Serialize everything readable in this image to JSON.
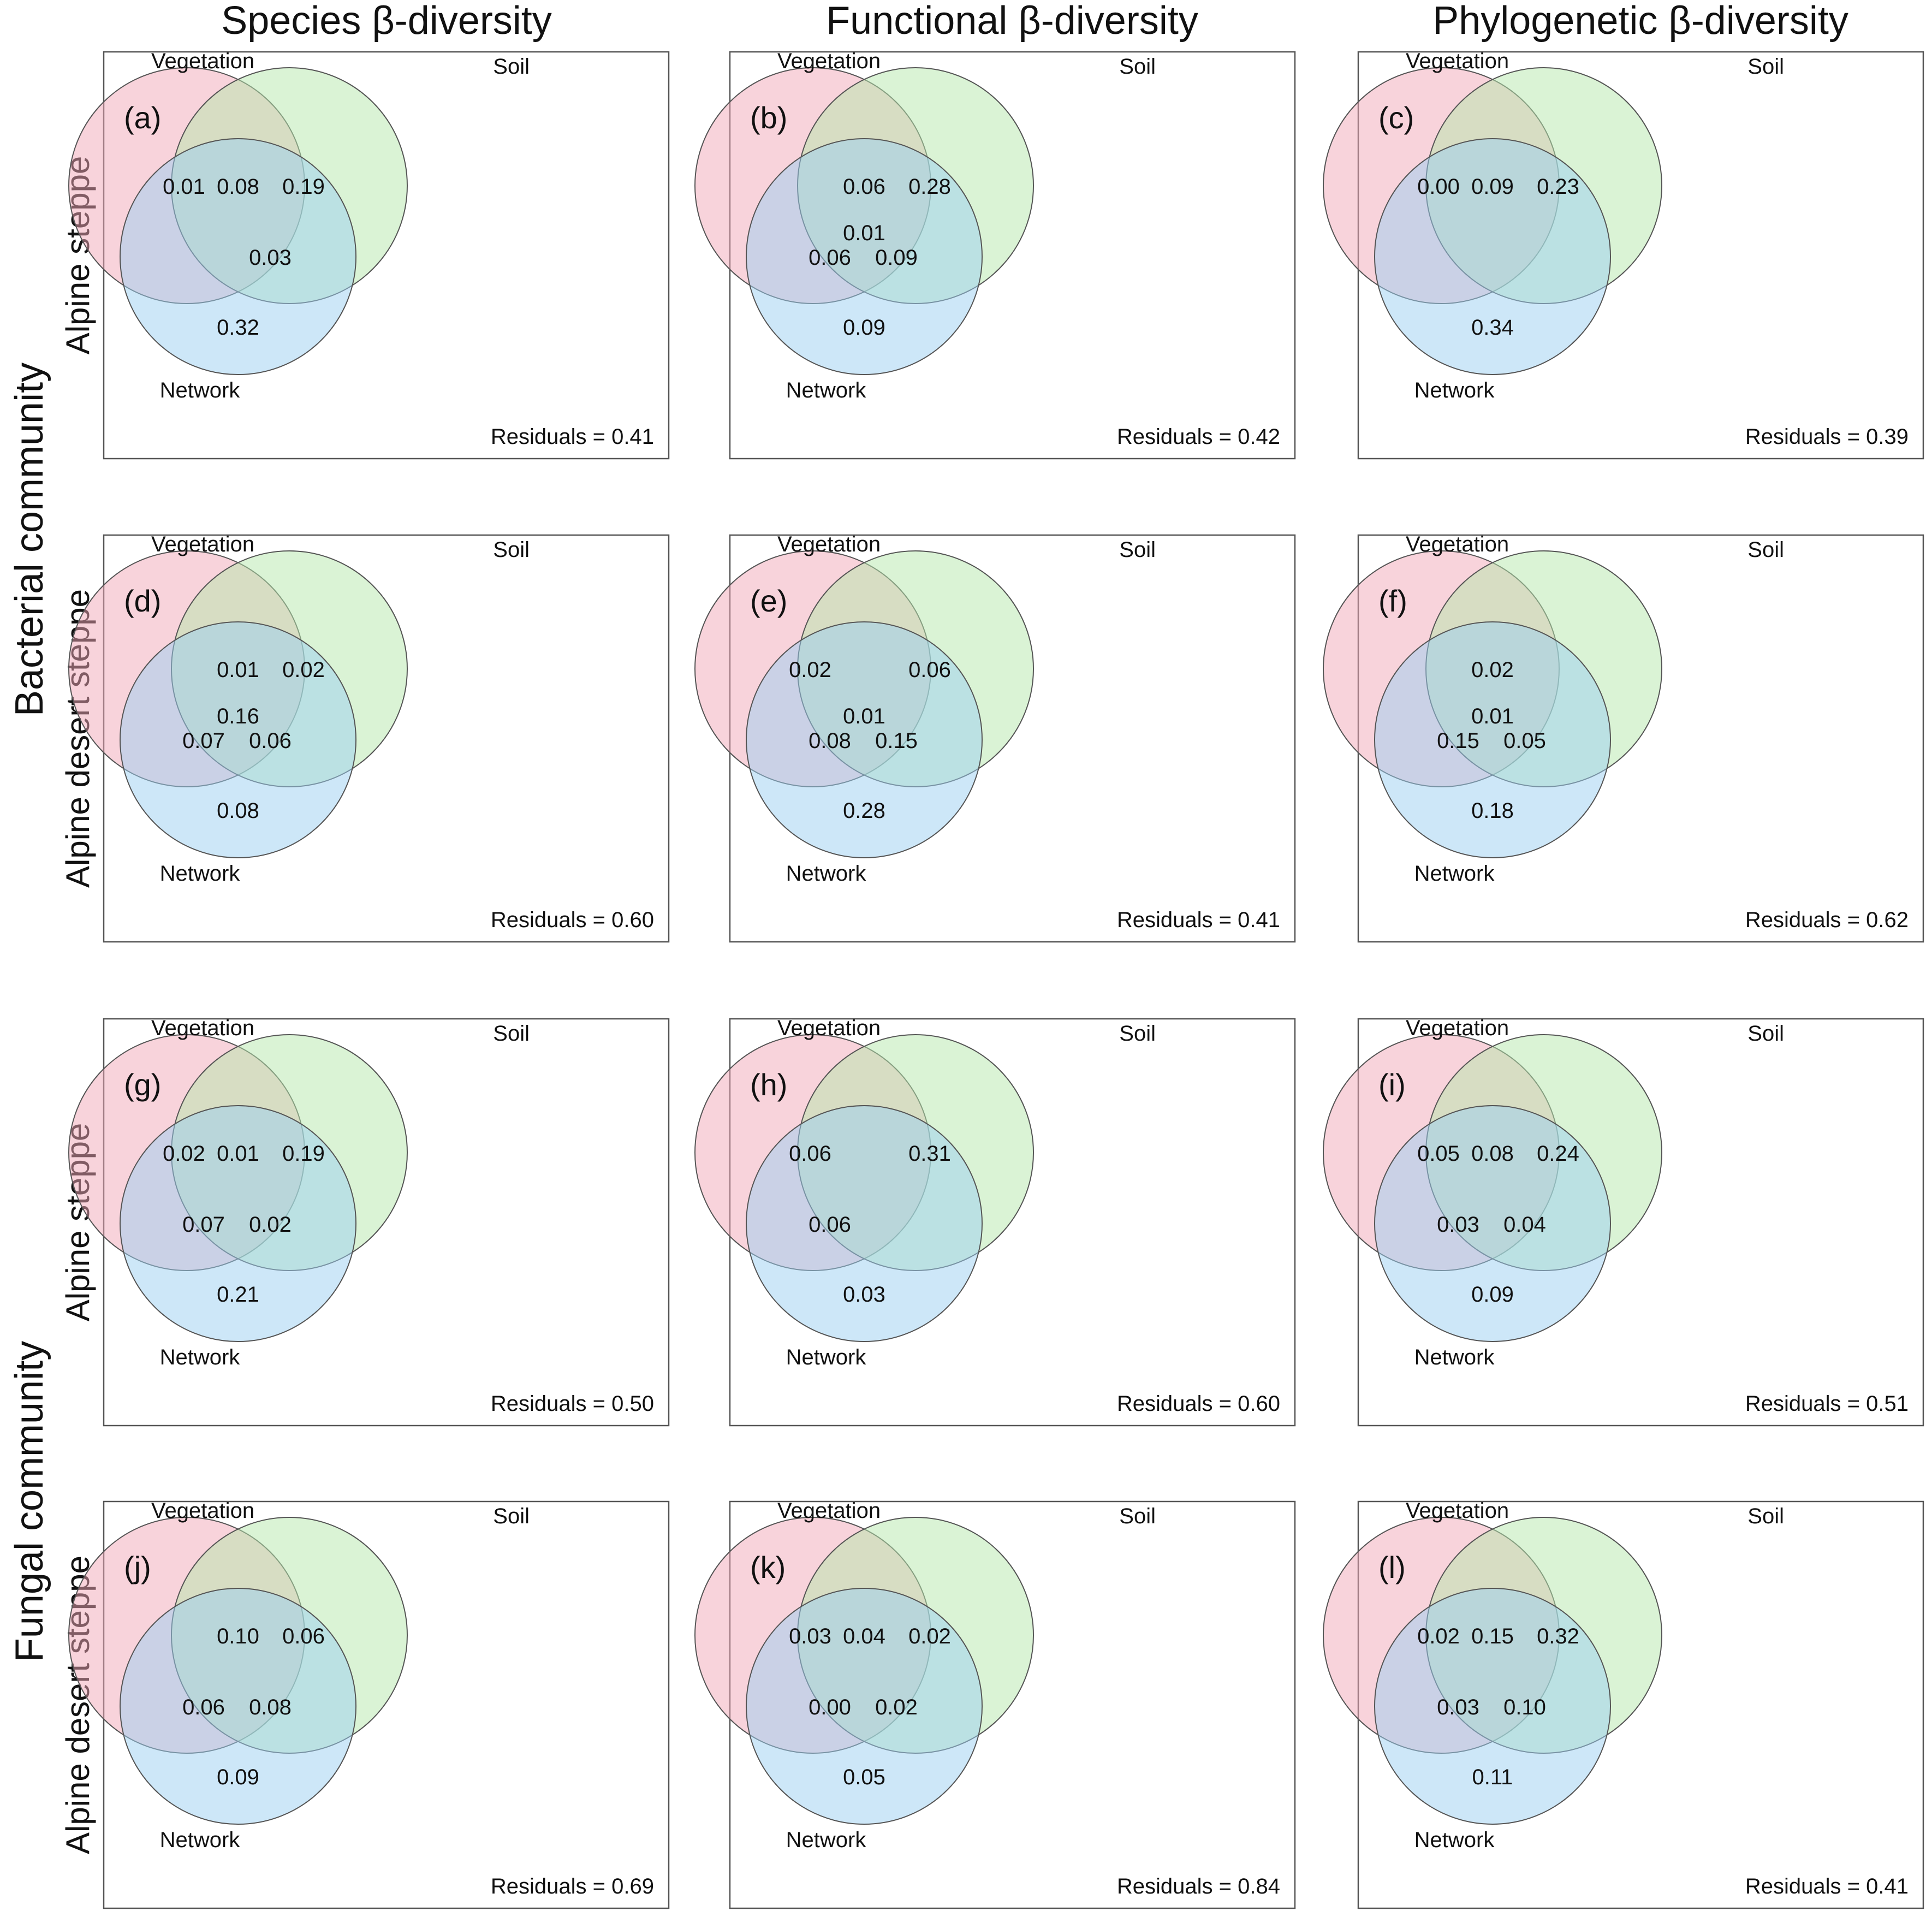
{
  "columns": [
    "Species β-diversity",
    "Functional β-diversity",
    "Phylogenetic β-diversity"
  ],
  "groups": [
    {
      "label": "Bacterial community",
      "rows": [
        "Alpine steppe",
        "Alpine desert steppe"
      ]
    },
    {
      "label": "Fungal community",
      "rows": [
        "Alpine steppe",
        "Alpine desert steppe"
      ]
    }
  ],
  "legend_sets": [
    "Vegetation",
    "Soil",
    "Network"
  ],
  "colors": {
    "vegetation": "#f2a7b8",
    "soil": "#b5e8ab",
    "network": "#9ccff2"
  },
  "residuals_prefix": "Residuals = ",
  "panels": [
    {
      "letter": "(a)",
      "values": {
        "veg": "0.01",
        "veg_soil": "0.08",
        "soil": "0.19",
        "veg_net": "",
        "all": "",
        "soil_net": "0.03",
        "net": "0.32"
      },
      "residuals": "0.41"
    },
    {
      "letter": "(b)",
      "values": {
        "veg": "",
        "veg_soil": "0.06",
        "soil": "0.28",
        "veg_net": "0.06",
        "all": "0.01",
        "soil_net": "0.09",
        "net": "0.09"
      },
      "residuals": "0.42"
    },
    {
      "letter": "(c)",
      "values": {
        "veg": "0.00",
        "veg_soil": "0.09",
        "soil": "0.23",
        "veg_net": "",
        "all": "",
        "soil_net": "",
        "net": "0.34"
      },
      "residuals": "0.39"
    },
    {
      "letter": "(d)",
      "values": {
        "veg": "",
        "veg_soil": "0.01",
        "soil": "0.02",
        "veg_net": "0.07",
        "all": "0.16",
        "soil_net": "0.06",
        "net": "0.08"
      },
      "residuals": "0.60"
    },
    {
      "letter": "(e)",
      "values": {
        "veg": "0.02",
        "veg_soil": "",
        "soil": "0.06",
        "veg_net": "0.08",
        "all": "0.01",
        "soil_net": "0.15",
        "net": "0.28"
      },
      "residuals": "0.41"
    },
    {
      "letter": "(f)",
      "values": {
        "veg": "",
        "veg_soil": "0.02",
        "soil": "",
        "veg_net": "0.15",
        "all": "0.01",
        "soil_net": "0.05",
        "net": "0.18"
      },
      "residuals": "0.62"
    },
    {
      "letter": "(g)",
      "values": {
        "veg": "0.02",
        "veg_soil": "0.01",
        "soil": "0.19",
        "veg_net": "0.07",
        "all": "",
        "soil_net": "0.02",
        "net": "0.21"
      },
      "residuals": "0.50"
    },
    {
      "letter": "(h)",
      "values": {
        "veg": "0.06",
        "veg_soil": "",
        "soil": "0.31",
        "veg_net": "0.06",
        "all": "",
        "soil_net": "",
        "net": "0.03"
      },
      "residuals": "0.60"
    },
    {
      "letter": "(i)",
      "values": {
        "veg": "0.05",
        "veg_soil": "0.08",
        "soil": "0.24",
        "veg_net": "0.03",
        "all": "",
        "soil_net": "0.04",
        "net": "0.09"
      },
      "residuals": "0.51"
    },
    {
      "letter": "(j)",
      "values": {
        "veg": "",
        "veg_soil": "0.10",
        "soil": "0.06",
        "veg_net": "0.06",
        "all": "",
        "soil_net": "0.08",
        "net": "0.09"
      },
      "residuals": "0.69"
    },
    {
      "letter": "(k)",
      "values": {
        "veg": "0.03",
        "veg_soil": "0.04",
        "soil": "0.02",
        "veg_net": "0.00",
        "all": "",
        "soil_net": "0.02",
        "net": "0.05"
      },
      "residuals": "0.84"
    },
    {
      "letter": "(l)",
      "values": {
        "veg": "0.02",
        "veg_soil": "0.15",
        "soil": "0.32",
        "veg_net": "0.03",
        "all": "",
        "soil_net": "0.10",
        "net": "0.11"
      },
      "residuals": "0.41"
    }
  ]
}
